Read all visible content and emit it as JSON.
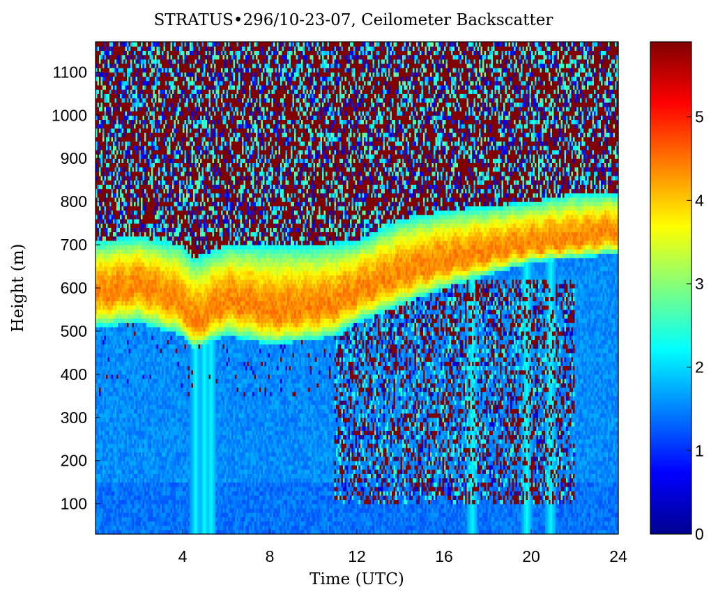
{
  "chart_data": {
    "type": "heatmap",
    "title": "STRATUS•296/10-23-07, Ceilometer Backscatter",
    "xlabel": "Time (UTC)",
    "ylabel": "Height (m)",
    "xlim": [
      0,
      24
    ],
    "ylim": [
      30,
      1170
    ],
    "x_ticks": [
      4,
      8,
      12,
      16,
      20,
      24
    ],
    "y_ticks": [
      100,
      200,
      300,
      400,
      500,
      600,
      700,
      800,
      900,
      1000,
      1100
    ],
    "colormap": "jet",
    "colorbar": {
      "range": [
        0,
        5.9
      ],
      "ticks": [
        0,
        1,
        2,
        3,
        4,
        5
      ]
    },
    "layer_top_m": [
      [
        0,
        710
      ],
      [
        2,
        720
      ],
      [
        4,
        700
      ],
      [
        4.5,
        670
      ],
      [
        6,
        700
      ],
      [
        8,
        700
      ],
      [
        10,
        700
      ],
      [
        12,
        710
      ],
      [
        14,
        760
      ],
      [
        16,
        780
      ],
      [
        18,
        790
      ],
      [
        20,
        800
      ],
      [
        22,
        820
      ],
      [
        24,
        820
      ]
    ],
    "layer_peak_m": [
      [
        0,
        580
      ],
      [
        2,
        610
      ],
      [
        4,
        560
      ],
      [
        4.5,
        510
      ],
      [
        5,
        530
      ],
      [
        6,
        570
      ],
      [
        7,
        560
      ],
      [
        8,
        540
      ],
      [
        10,
        550
      ],
      [
        11,
        560
      ],
      [
        12,
        590
      ],
      [
        14,
        630
      ],
      [
        16,
        660
      ],
      [
        18,
        680
      ],
      [
        20,
        700
      ],
      [
        22,
        710
      ],
      [
        24,
        730
      ]
    ],
    "layer_base_m": [
      [
        0,
        510
      ],
      [
        2,
        520
      ],
      [
        4,
        490
      ],
      [
        4.5,
        460
      ],
      [
        5,
        470
      ],
      [
        6,
        490
      ],
      [
        8,
        470
      ],
      [
        10,
        480
      ],
      [
        11,
        490
      ],
      [
        12,
        520
      ],
      [
        14,
        560
      ],
      [
        16,
        600
      ],
      [
        18,
        630
      ],
      [
        20,
        660
      ],
      [
        22,
        670
      ],
      [
        24,
        680
      ]
    ],
    "lower_speckle_region": {
      "time_range": [
        11,
        22
      ],
      "height_range_m": [
        100,
        620
      ]
    },
    "vertical_streaks_utc": [
      4.6,
      5.0,
      5.3,
      17.3,
      19.8,
      20.9
    ]
  }
}
